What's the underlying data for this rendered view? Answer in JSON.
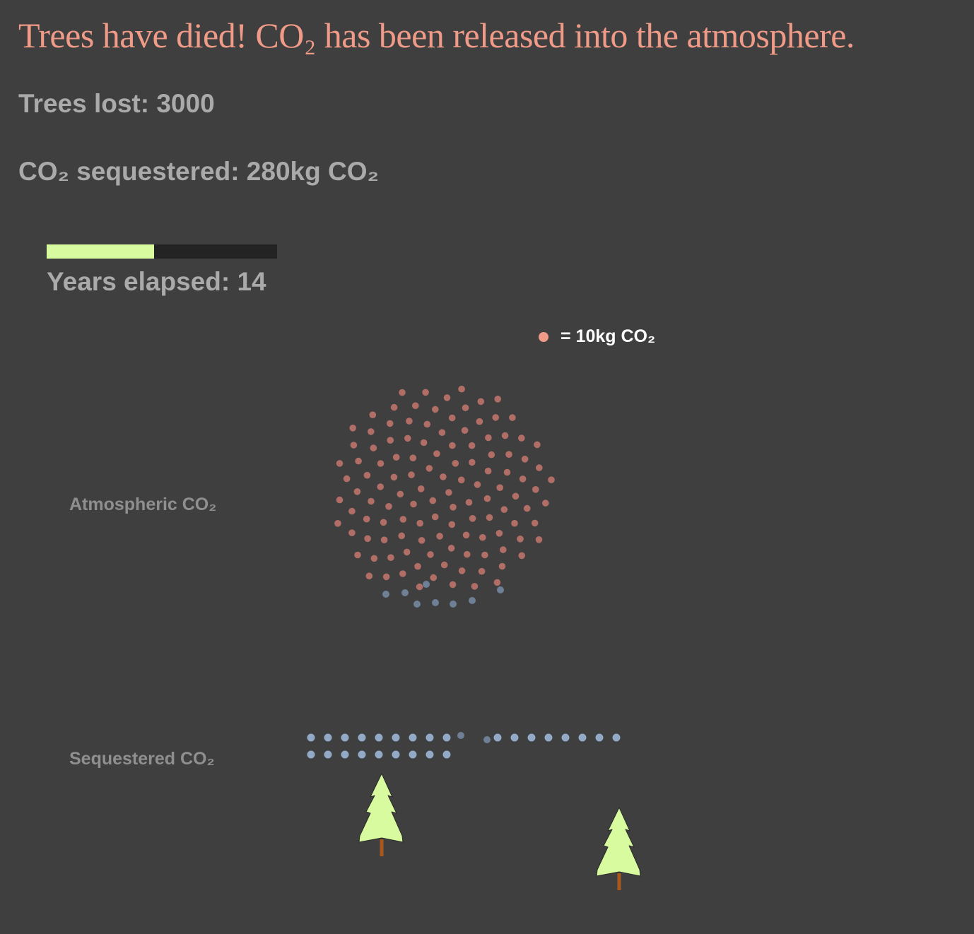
{
  "headline": "Trees have died! CO₂ has been released into the atmosphere.",
  "stats": {
    "trees_lost": "Trees lost: 3000",
    "co2_sequestered": "CO₂ sequestered: 280kg CO₂"
  },
  "timeline": {
    "progress": 0.466,
    "years_elapsed": "Years elapsed: 14"
  },
  "legend": {
    "label": "= 10kg CO₂"
  },
  "labels": {
    "atmospheric": "Atmospheric CO₂",
    "sequestered": "Sequestered CO₂"
  },
  "particles": {
    "atmospheric_count": 125,
    "migrating_count": 9,
    "sequestered_count": 28
  },
  "trees": {
    "count": 2
  },
  "colors": {
    "background": "#3f3f3f",
    "accent": "#f09a88",
    "atmospheric_dot": "#b06e66",
    "sequestered_dot": "#92aac6",
    "migrating_dot": "#6e7f96",
    "tree_fill": "#d8fb9f",
    "tree_trunk": "#a8581c",
    "progress_fill": "#d8fb9f",
    "progress_track": "#232323",
    "label_text": "#aaaaaa"
  }
}
